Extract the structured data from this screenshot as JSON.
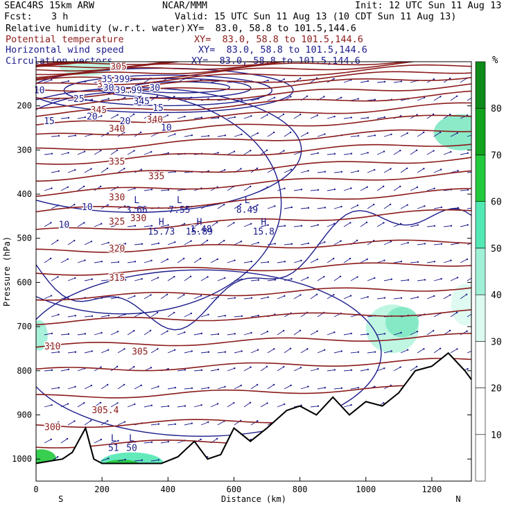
{
  "header": {
    "model": "SEAC4RS 15km ARW",
    "org": "NCAR/MMM",
    "init": "Init: 12 UTC Sun 11 Aug 13",
    "fcst_label": "Fcst:",
    "fcst_value": "3 h",
    "valid": "Valid: 15 UTC Sun 11 Aug 13 (10 CDT Sun 11 Aug 13)",
    "fields": [
      {
        "name": "Relative humidity (w.r.t. water)",
        "xy": "XY=  83.0, 58.8 to 101.5,144.6",
        "color": "#000000"
      },
      {
        "name": "Potential temperature",
        "xy": "XY=  83.0, 58.8 to 101.5,144.6",
        "color": "#8b1a1a"
      },
      {
        "name": "Horizontal wind speed",
        "xy": "XY=  83.0, 58.8 to 101.5,144.6",
        "color": "#1a1a8b"
      },
      {
        "name": "Circulation vectors",
        "xy": "XY=  83.0, 58.8 to 101.5,144.6",
        "color": "#1a1a8b"
      }
    ]
  },
  "colors": {
    "theta": "#8b1a1a",
    "wind": "#1a1a8b",
    "terrain": "#000000",
    "rh_70": "#52e8b4",
    "rh_80": "#22c93c",
    "rh_90": "#12a41e"
  },
  "chart_data": {
    "type": "cross-section",
    "xlabel": "Distance (km)",
    "ylabel": "Pressure (hPa)",
    "xlim": [
      0,
      1320
    ],
    "ylim": [
      1050,
      100
    ],
    "xticks": [
      0,
      200,
      400,
      600,
      800,
      1000,
      1200
    ],
    "yticks": [
      200,
      300,
      400,
      500,
      600,
      700,
      800,
      900,
      1000
    ],
    "x_end_labels": {
      "left": "S",
      "right": "N"
    },
    "colorbar": {
      "unit": "%",
      "ticks": [
        10,
        20,
        30,
        40,
        50,
        60,
        70,
        80
      ]
    },
    "theta_labels": [
      {
        "x": 250,
        "p": 112,
        "text": "305"
      },
      {
        "x": 210,
        "p": 152,
        "text": "350"
      },
      {
        "x": 190,
        "p": 210,
        "text": "345"
      },
      {
        "x": 245,
        "p": 252,
        "text": "340"
      },
      {
        "x": 245,
        "p": 327,
        "text": "335"
      },
      {
        "x": 245,
        "p": 408,
        "text": "330"
      },
      {
        "x": 245,
        "p": 463,
        "text": "325"
      },
      {
        "x": 245,
        "p": 524,
        "text": "320"
      },
      {
        "x": 245,
        "p": 590,
        "text": "315"
      },
      {
        "x": 50,
        "p": 745,
        "text": "310"
      },
      {
        "x": 315,
        "p": 757,
        "text": "305"
      },
      {
        "x": 50,
        "p": 928,
        "text": "300"
      },
      {
        "x": 210,
        "p": 890,
        "text": "305.4"
      },
      {
        "x": 365,
        "p": 360,
        "text": "335"
      },
      {
        "x": 360,
        "p": 232,
        "text": "340"
      },
      {
        "x": 310,
        "p": 455,
        "text": "330"
      }
    ],
    "wind_labels": [
      {
        "x": 10,
        "p": 165,
        "text": "10"
      },
      {
        "x": 40,
        "p": 235,
        "text": "15"
      },
      {
        "x": 130,
        "p": 185,
        "text": "25"
      },
      {
        "x": 170,
        "p": 225,
        "text": "20"
      },
      {
        "x": 215,
        "p": 140,
        "text": "35"
      },
      {
        "x": 220,
        "p": 160,
        "text": "30"
      },
      {
        "x": 270,
        "p": 235,
        "text": "20"
      },
      {
        "x": 260,
        "p": 140,
        "text": "399"
      },
      {
        "x": 280,
        "p": 165,
        "text": "39.99"
      },
      {
        "x": 320,
        "p": 190,
        "text": "345"
      },
      {
        "x": 360,
        "p": 160,
        "text": "30"
      },
      {
        "x": 370,
        "p": 205,
        "text": "15"
      },
      {
        "x": 395,
        "p": 250,
        "text": "10"
      },
      {
        "x": 155,
        "p": 430,
        "text": "10"
      },
      {
        "x": 85,
        "p": 470,
        "text": "10"
      },
      {
        "x": 500,
        "p": 480,
        "text": "1.48"
      }
    ],
    "extrema": [
      {
        "kind": "L",
        "value": "3.66",
        "x": 305,
        "p": 420
      },
      {
        "kind": "L",
        "value": "7.55",
        "x": 435,
        "p": 420
      },
      {
        "kind": "L",
        "value": "8.49",
        "x": 640,
        "p": 420
      },
      {
        "kind": "H",
        "value": "15.73",
        "x": 380,
        "p": 470
      },
      {
        "kind": "H",
        "value": "15.89",
        "x": 495,
        "p": 470
      },
      {
        "kind": "H",
        "value": "15.8",
        "x": 690,
        "p": 470
      },
      {
        "kind": "L",
        "value": "51",
        "x": 235,
        "p": 960
      },
      {
        "kind": "L",
        "value": "50",
        "x": 290,
        "p": 960
      }
    ]
  }
}
